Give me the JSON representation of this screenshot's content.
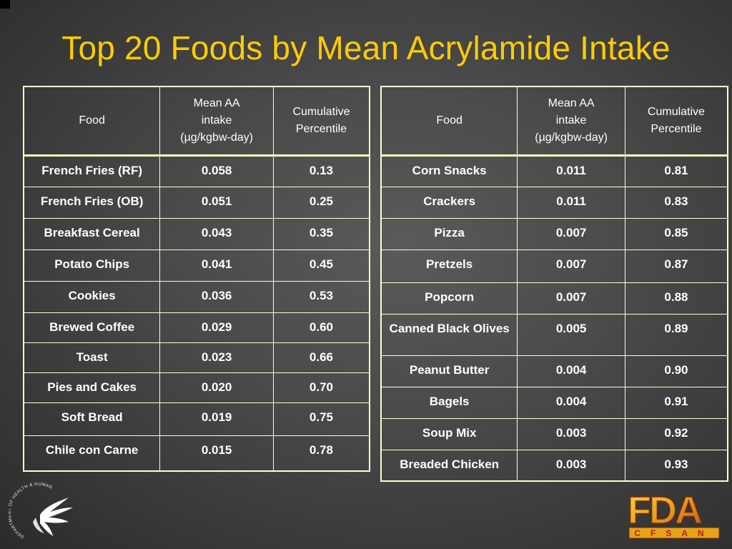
{
  "title": "Top 20 Foods by Mean Acrylamide Intake",
  "columns": {
    "food": "Food",
    "mean_line1": "Mean AA",
    "mean_line2": "intake",
    "mean_units": "(µg/kgbw-day)",
    "cum_line1": "Cumulative",
    "cum_line2": "Percentile"
  },
  "left_rows": [
    {
      "food": "French Fries (RF)",
      "mean": "0.058",
      "cum": "0.13"
    },
    {
      "food": "French Fries (OB)",
      "mean": "0.051",
      "cum": "0.25"
    },
    {
      "food": "Breakfast Cereal",
      "mean": "0.043",
      "cum": "0.35"
    },
    {
      "food": "Potato Chips",
      "mean": "0.041",
      "cum": "0.45"
    },
    {
      "food": "Cookies",
      "mean": "0.036",
      "cum": "0.53"
    },
    {
      "food": "Brewed Coffee",
      "mean": "0.029",
      "cum": "0.60"
    },
    {
      "food": "Toast",
      "mean": "0.023",
      "cum": "0.66"
    },
    {
      "food": "Pies and Cakes",
      "mean": "0.020",
      "cum": "0.70"
    },
    {
      "food": "Soft Bread",
      "mean": "0.019",
      "cum": "0.75"
    },
    {
      "food": "Chile con Carne",
      "mean": "0.015",
      "cum": "0.78"
    }
  ],
  "right_rows": [
    {
      "food": "Corn Snacks",
      "mean": "0.011",
      "cum": "0.81"
    },
    {
      "food": "Crackers",
      "mean": "0.011",
      "cum": "0.83"
    },
    {
      "food": "Pizza",
      "mean": "0.007",
      "cum": "0.85"
    },
    {
      "food": "Pretzels",
      "mean": "0.007",
      "cum": "0.87"
    },
    {
      "food": "Popcorn",
      "mean": "0.007",
      "cum": "0.88"
    },
    {
      "food": "Canned Black Olives",
      "mean": "0.005",
      "cum": "0.89"
    },
    {
      "food": "Peanut Butter",
      "mean": "0.004",
      "cum": "0.90"
    },
    {
      "food": "Bagels",
      "mean": "0.004",
      "cum": "0.91"
    },
    {
      "food": "Soup Mix",
      "mean": "0.003",
      "cum": "0.92"
    },
    {
      "food": "Breaded Chicken",
      "mean": "0.003",
      "cum": "0.93"
    }
  ],
  "logos": {
    "hhs_seal_text": "DEPARTMENT OF HEALTH & HUMAN SERVICES · USA",
    "fda_text": "FDA",
    "cfsan_text": "CFSAN"
  },
  "colors": {
    "title": "#ffcc00",
    "table_border": "#ffffcc",
    "background": "#4a4a4a",
    "fda_gold": "#e8a317",
    "fda_red": "#b22222"
  }
}
